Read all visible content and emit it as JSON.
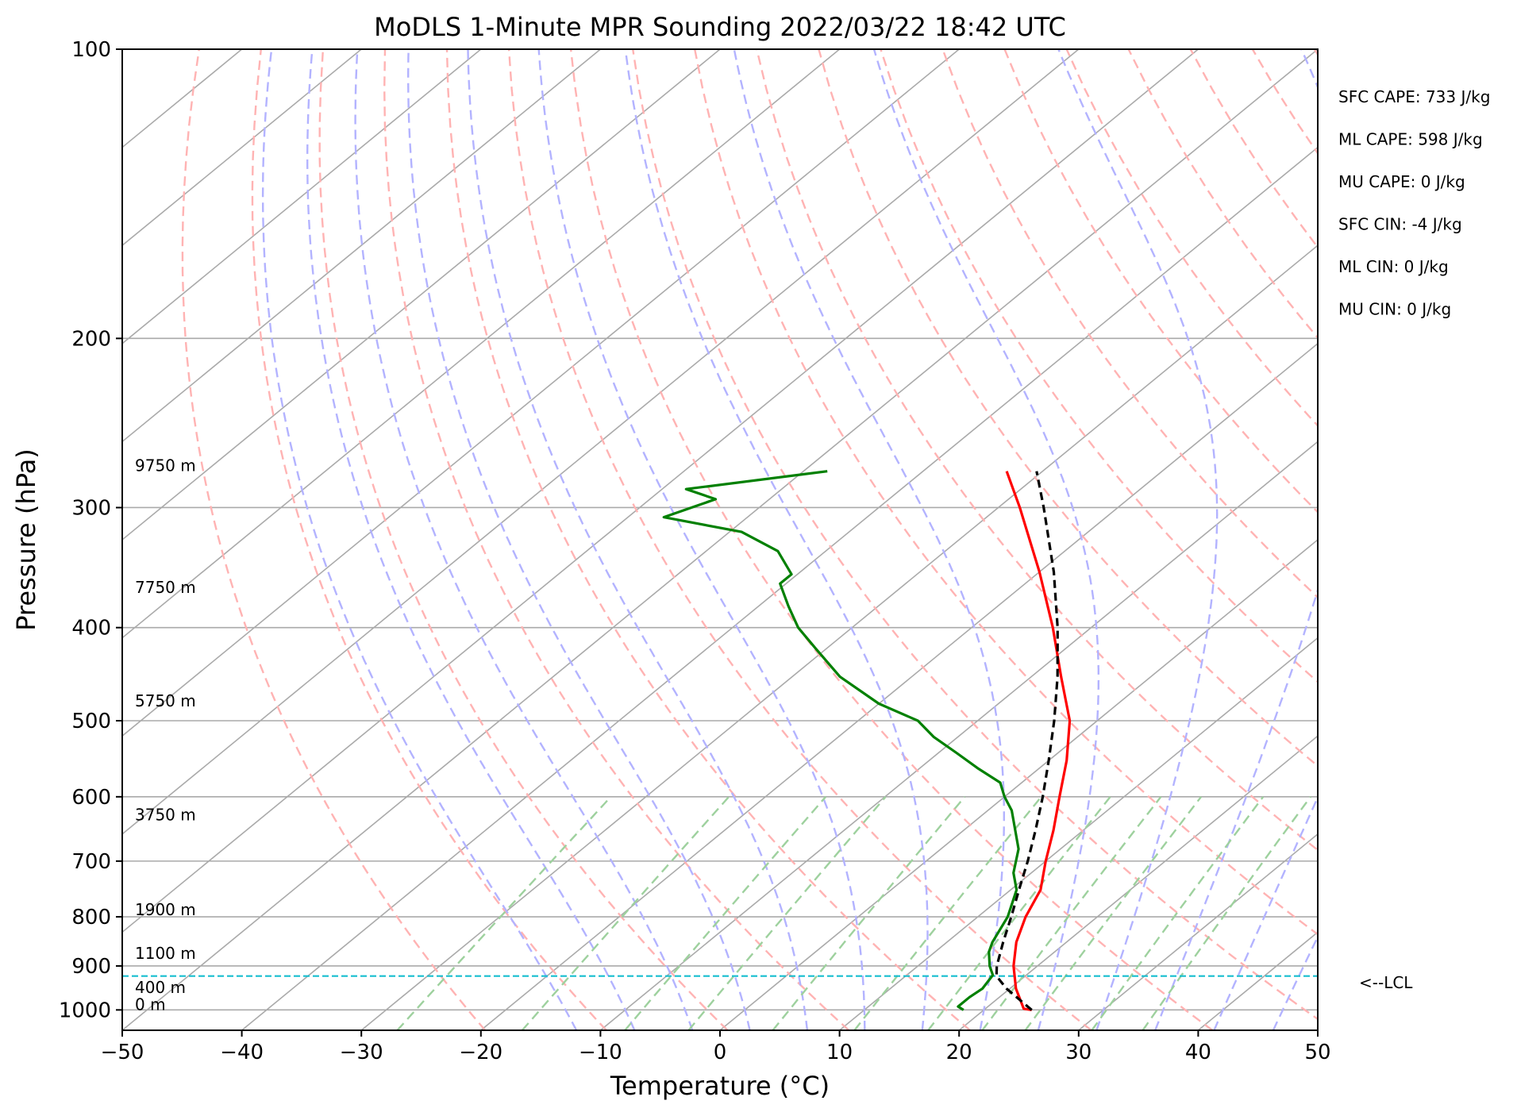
{
  "chart_data": {
    "type": "skew-t",
    "title": "MoDLS 1-Minute MPR Sounding 2022/03/22 18:42 UTC",
    "xlabel": "Temperature (°C)",
    "ylabel": "Pressure (hPa)",
    "xlim": [
      -50,
      50
    ],
    "ylim": [
      1050,
      100
    ],
    "y_scale": "log",
    "x_ticks": [
      -50,
      -40,
      -30,
      -20,
      -10,
      0,
      10,
      20,
      30,
      40,
      50
    ],
    "x_tick_labels": [
      "−50",
      "−40",
      "−30",
      "−20",
      "−10",
      "0",
      "10",
      "20",
      "30",
      "40",
      "50"
    ],
    "y_ticks": [
      100,
      200,
      300,
      400,
      500,
      600,
      700,
      800,
      900,
      1000
    ],
    "y_tick_labels": [
      "100",
      "200",
      "300",
      "400",
      "500",
      "600",
      "700",
      "800",
      "900",
      "1000"
    ],
    "colors": {
      "temperature": "#ff0000",
      "dewpoint": "#008000",
      "parcel": "#000000",
      "isotherm": "#aaaaaa",
      "dry_adiabat": "#ffb3b3",
      "moist_adiabat": "#b3b3ff",
      "mixing_ratio": "#9ed19e",
      "lcl": "#17becf"
    },
    "series": [
      {
        "name": "",
        "role": "temperature",
        "points": [
          {
            "p": 1000,
            "t": 24.0
          },
          {
            "p": 997,
            "t": 23.2
          },
          {
            "p": 950,
            "t": 20.5
          },
          {
            "p": 900,
            "t": 18.0
          },
          {
            "p": 850,
            "t": 15.8
          },
          {
            "p": 800,
            "t": 14.0
          },
          {
            "p": 750,
            "t": 12.5
          },
          {
            "p": 700,
            "t": 10.0
          },
          {
            "p": 650,
            "t": 7.5
          },
          {
            "p": 600,
            "t": 4.6
          },
          {
            "p": 550,
            "t": 1.5
          },
          {
            "p": 500,
            "t": -2.3
          },
          {
            "p": 450,
            "t": -7.5
          },
          {
            "p": 400,
            "t": -13.2
          },
          {
            "p": 350,
            "t": -20.0
          },
          {
            "p": 300,
            "t": -28.2
          },
          {
            "p": 275,
            "t": -33.0
          }
        ]
      },
      {
        "name": "",
        "role": "dewpoint",
        "points": [
          {
            "p": 1000,
            "t": 18.3
          },
          {
            "p": 992,
            "t": 17.5
          },
          {
            "p": 970,
            "t": 17.5
          },
          {
            "p": 950,
            "t": 17.7
          },
          {
            "p": 920,
            "t": 17.2
          },
          {
            "p": 900,
            "t": 16.0
          },
          {
            "p": 870,
            "t": 14.5
          },
          {
            "p": 850,
            "t": 13.8
          },
          {
            "p": 800,
            "t": 12.5
          },
          {
            "p": 750,
            "t": 10.5
          },
          {
            "p": 720,
            "t": 8.5
          },
          {
            "p": 680,
            "t": 6.5
          },
          {
            "p": 620,
            "t": 2.0
          },
          {
            "p": 600,
            "t": 0.0
          },
          {
            "p": 580,
            "t": -1.8
          },
          {
            "p": 560,
            "t": -5.2
          },
          {
            "p": 540,
            "t": -8.5
          },
          {
            "p": 520,
            "t": -12.0
          },
          {
            "p": 500,
            "t": -15.0
          },
          {
            "p": 480,
            "t": -20.0
          },
          {
            "p": 450,
            "t": -26.0
          },
          {
            "p": 420,
            "t": -31.0
          },
          {
            "p": 400,
            "t": -34.5
          },
          {
            "p": 380,
            "t": -37.5
          },
          {
            "p": 360,
            "t": -40.5
          },
          {
            "p": 352,
            "t": -40.5
          },
          {
            "p": 333,
            "t": -44.0
          },
          {
            "p": 318,
            "t": -49.0
          },
          {
            "p": 307,
            "t": -57.0
          },
          {
            "p": 294,
            "t": -54.5
          },
          {
            "p": 287,
            "t": -58.0
          },
          {
            "p": 275,
            "t": -48.0
          }
        ]
      },
      {
        "name": "",
        "role": "parcel",
        "points": [
          {
            "p": 1000,
            "t": 24.0
          },
          {
            "p": 950,
            "t": 19.7
          },
          {
            "p": 922,
            "t": 17.6
          },
          {
            "p": 900,
            "t": 16.6
          },
          {
            "p": 850,
            "t": 14.7
          },
          {
            "p": 800,
            "t": 12.8
          },
          {
            "p": 750,
            "t": 10.7
          },
          {
            "p": 700,
            "t": 8.5
          },
          {
            "p": 650,
            "t": 6.0
          },
          {
            "p": 600,
            "t": 3.2
          },
          {
            "p": 550,
            "t": 0.0
          },
          {
            "p": 500,
            "t": -3.6
          },
          {
            "p": 450,
            "t": -7.8
          },
          {
            "p": 400,
            "t": -12.8
          },
          {
            "p": 350,
            "t": -18.8
          },
          {
            "p": 300,
            "t": -26.2
          },
          {
            "p": 275,
            "t": -30.5
          }
        ]
      }
    ],
    "lcl_pressure": 922,
    "lcl_label": "<--LCL",
    "height_labels": [
      {
        "text": "9750 m",
        "p": 275
      },
      {
        "text": "7750 m",
        "p": 368
      },
      {
        "text": "5750 m",
        "p": 483
      },
      {
        "text": "3750 m",
        "p": 635
      },
      {
        "text": "1900 m",
        "p": 797
      },
      {
        "text": "1100 m",
        "p": 885
      },
      {
        "text": "400 m",
        "p": 960
      },
      {
        "text": "0 m",
        "p": 1000
      }
    ],
    "stats": [
      "SFC CAPE: 733 J/kg",
      "ML CAPE: 598 J/kg",
      "MU CAPE: 0 J/kg",
      "SFC CIN: -4 J/kg",
      "ML CIN: 0 J/kg",
      "MU CIN: 0 J/kg"
    ],
    "grid": true
  }
}
